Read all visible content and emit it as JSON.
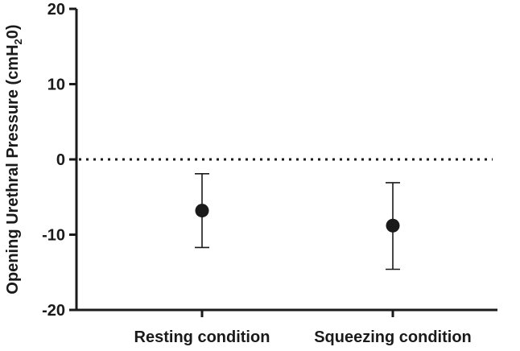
{
  "chart_data": {
    "type": "scatter",
    "categories": [
      "Resting condition",
      "Squeezing condition"
    ],
    "series": [
      {
        "values": [
          -6.8,
          -8.8
        ],
        "error_upper": [
          -1.9,
          -3.1
        ],
        "error_lower": [
          -11.7,
          -14.6
        ]
      }
    ],
    "ylabel_main": "Opening Urethral Pressure (cmH",
    "ylabel_sub": "2",
    "ylabel_end": "0)",
    "ylim": [
      -20,
      20
    ],
    "yticks": [
      -20,
      -10,
      0,
      10,
      20
    ],
    "ytick_labels": [
      "-20",
      "-10",
      "0",
      "10",
      "20"
    ],
    "reference_line": {
      "y": 0,
      "style": "dotted"
    },
    "grid": false,
    "colors": {
      "marker": "#1a1a1a",
      "axis": "#1a1a1a"
    }
  }
}
